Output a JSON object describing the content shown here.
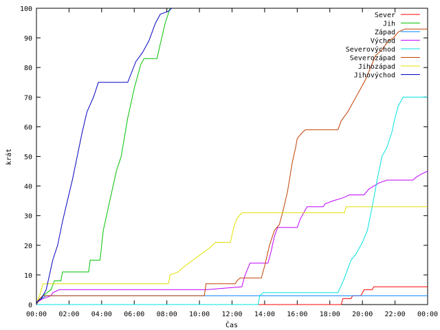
{
  "chart_data": {
    "type": "line",
    "title": "",
    "xlabel": "Čas",
    "ylabel": "krát",
    "xlim": [
      0,
      24
    ],
    "ylim": [
      0,
      100
    ],
    "x_ticks": [
      "00:00",
      "02:00",
      "04:00",
      "06:00",
      "08:00",
      "10:00",
      "12:00",
      "14:00",
      "16:00",
      "18:00",
      "20:00",
      "22:00",
      "00:00"
    ],
    "y_ticks": [
      "0",
      "10",
      "20",
      "30",
      "40",
      "50",
      "60",
      "70",
      "80",
      "90",
      "100"
    ],
    "grid": false,
    "legend_position": "top-right",
    "series": [
      {
        "name": "Sever",
        "color": "#ff0000",
        "points": [
          [
            0,
            0
          ],
          [
            18.7,
            0
          ],
          [
            18.8,
            2
          ],
          [
            19.3,
            2
          ],
          [
            19.4,
            3
          ],
          [
            19.9,
            3
          ],
          [
            20,
            4
          ],
          [
            20.1,
            5
          ],
          [
            20.6,
            5
          ],
          [
            20.7,
            6
          ],
          [
            24,
            6
          ]
        ]
      },
      {
        "name": "Jih",
        "color": "#00c000",
        "points": [
          [
            0,
            0
          ],
          [
            0.05,
            1
          ],
          [
            0.2,
            2
          ],
          [
            0.4,
            3
          ],
          [
            0.9,
            5
          ],
          [
            1.1,
            8
          ],
          [
            1.5,
            8
          ],
          [
            1.6,
            11
          ],
          [
            3.2,
            11
          ],
          [
            3.3,
            15
          ],
          [
            3.9,
            15
          ],
          [
            4.1,
            25
          ],
          [
            4.5,
            35
          ],
          [
            4.9,
            45
          ],
          [
            5.2,
            50
          ],
          [
            5.6,
            63
          ],
          [
            6,
            73
          ],
          [
            6.4,
            81
          ],
          [
            6.6,
            83
          ],
          [
            7.4,
            83
          ],
          [
            7.6,
            88
          ],
          [
            7.9,
            95
          ],
          [
            8.2,
            100
          ]
        ]
      },
      {
        "name": "Západ",
        "color": "#0080ff",
        "points": [
          [
            0,
            0
          ],
          [
            0.05,
            1
          ],
          [
            0.3,
            2
          ],
          [
            0.6,
            3
          ],
          [
            24,
            3
          ]
        ]
      },
      {
        "name": "Východ",
        "color": "#c000ff",
        "points": [
          [
            0,
            0
          ],
          [
            0.1,
            1
          ],
          [
            0.4,
            2
          ],
          [
            0.9,
            3
          ],
          [
            1,
            4
          ],
          [
            1.4,
            5
          ],
          [
            10.4,
            5
          ],
          [
            12.6,
            6
          ],
          [
            12.7,
            8
          ],
          [
            12.8,
            10
          ],
          [
            13.1,
            14
          ],
          [
            14.2,
            14
          ],
          [
            14.4,
            18
          ],
          [
            14.6,
            23
          ],
          [
            14.8,
            26
          ],
          [
            16,
            26
          ],
          [
            16.2,
            29
          ],
          [
            16.6,
            33
          ],
          [
            17.6,
            33
          ],
          [
            17.7,
            34
          ],
          [
            18.2,
            35
          ],
          [
            18.8,
            36
          ],
          [
            19.2,
            37
          ],
          [
            20.1,
            37
          ],
          [
            20.4,
            39
          ],
          [
            21,
            41
          ],
          [
            21.5,
            42
          ],
          [
            23.1,
            42
          ],
          [
            23.3,
            43
          ],
          [
            23.6,
            44
          ],
          [
            24,
            45
          ]
        ]
      },
      {
        "name": "Severovýchod",
        "color": "#00e0e0",
        "points": [
          [
            0,
            0
          ],
          [
            13.6,
            0
          ],
          [
            13.7,
            3
          ],
          [
            13.9,
            4
          ],
          [
            18.5,
            4
          ],
          [
            18.9,
            9
          ],
          [
            19.3,
            15
          ],
          [
            19.6,
            17
          ],
          [
            20,
            21
          ],
          [
            20.3,
            25
          ],
          [
            20.6,
            33
          ],
          [
            20.9,
            42
          ],
          [
            21.2,
            50
          ],
          [
            21.5,
            53
          ],
          [
            21.8,
            58
          ],
          [
            22,
            63
          ],
          [
            22.2,
            67
          ],
          [
            22.5,
            70
          ],
          [
            24,
            70
          ]
        ]
      },
      {
        "name": "Severozápad",
        "color": "#c04000",
        "points": [
          [
            0,
            0
          ],
          [
            0.1,
            1
          ],
          [
            0.2,
            2
          ],
          [
            0.4,
            3
          ],
          [
            10.3,
            3
          ],
          [
            10.4,
            7
          ],
          [
            12.2,
            7
          ],
          [
            12.3,
            8
          ],
          [
            12.5,
            9
          ],
          [
            13.8,
            9
          ],
          [
            14,
            13
          ],
          [
            14.3,
            20
          ],
          [
            14.6,
            25
          ],
          [
            14.9,
            27
          ],
          [
            15.1,
            31
          ],
          [
            15.4,
            38
          ],
          [
            15.7,
            48
          ],
          [
            15.9,
            53
          ],
          [
            16,
            56
          ],
          [
            16.3,
            58
          ],
          [
            16.5,
            59
          ],
          [
            18.5,
            59
          ],
          [
            18.7,
            62
          ],
          [
            19.1,
            65
          ],
          [
            19.5,
            69
          ],
          [
            19.9,
            73
          ],
          [
            20.2,
            76
          ],
          [
            20.5,
            80
          ],
          [
            20.8,
            84
          ],
          [
            21.2,
            86
          ],
          [
            21.6,
            89
          ],
          [
            21.9,
            90
          ],
          [
            22.2,
            92
          ],
          [
            22.6,
            93
          ],
          [
            24,
            93
          ]
        ]
      },
      {
        "name": "Jihozápad",
        "color": "#e0e000",
        "points": [
          [
            0,
            0
          ],
          [
            0.1,
            2
          ],
          [
            0.2,
            3
          ],
          [
            0.4,
            7
          ],
          [
            8.1,
            7
          ],
          [
            8.2,
            10
          ],
          [
            8.7,
            11
          ],
          [
            9.1,
            13
          ],
          [
            9.6,
            15
          ],
          [
            10.1,
            17
          ],
          [
            10.6,
            19
          ],
          [
            11,
            21
          ],
          [
            11.9,
            21
          ],
          [
            12.1,
            26
          ],
          [
            12.3,
            29
          ],
          [
            12.6,
            31
          ],
          [
            18.9,
            31
          ],
          [
            19,
            33
          ],
          [
            24,
            33
          ]
        ]
      },
      {
        "name": "Jihovýchod",
        "color": "#0000c0",
        "points": [
          [
            0,
            0
          ],
          [
            0.05,
            1
          ],
          [
            0.3,
            2
          ],
          [
            0.6,
            5
          ],
          [
            0.8,
            10
          ],
          [
            1,
            15
          ],
          [
            1.3,
            20
          ],
          [
            1.6,
            28
          ],
          [
            1.9,
            35
          ],
          [
            2.2,
            42
          ],
          [
            2.5,
            50
          ],
          [
            2.8,
            58
          ],
          [
            3.1,
            65
          ],
          [
            3.5,
            70
          ],
          [
            3.8,
            75
          ],
          [
            5.6,
            75
          ],
          [
            6.1,
            82
          ],
          [
            6.5,
            85
          ],
          [
            6.9,
            89
          ],
          [
            7.3,
            95
          ],
          [
            7.6,
            98
          ],
          [
            8.1,
            99
          ],
          [
            8.3,
            100
          ]
        ]
      }
    ]
  }
}
